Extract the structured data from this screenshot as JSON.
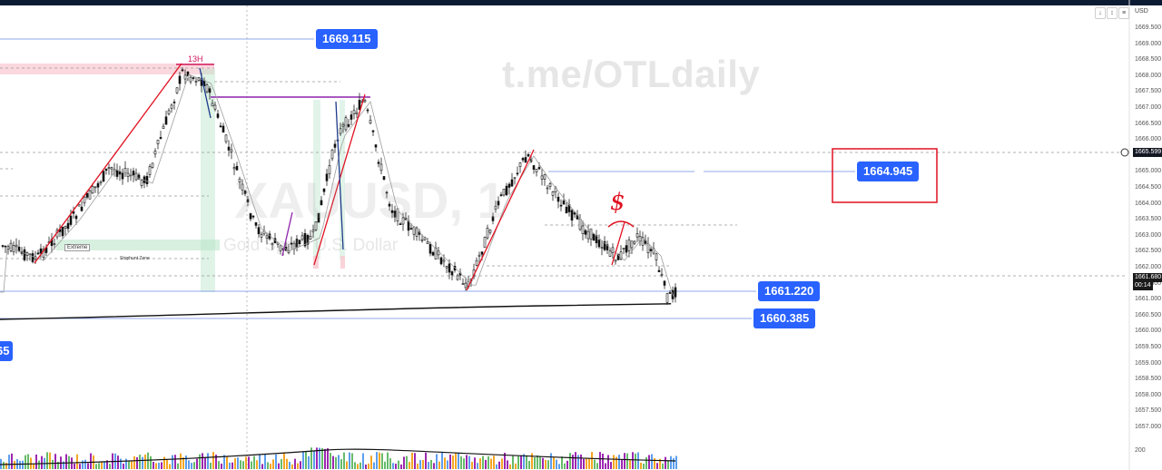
{
  "watermark": "t.me/OTLdaily",
  "ghost_symbol": "XAUUSD, 1",
  "ghost_description": "Gold Spot / U.S. Dollar",
  "currency": "USD",
  "price_scale": [
    "1669.500",
    "1669.000",
    "1668.500",
    "1668.000",
    "1667.500",
    "1667.000",
    "1666.500",
    "1666.000",
    "1665.500",
    "1665.000",
    "1664.500",
    "1664.000",
    "1663.500",
    "1663.000",
    "1662.500",
    "1662.000",
    "1661.500",
    "1661.000",
    "1660.500",
    "1660.000",
    "1659.500",
    "1659.000",
    "1658.500",
    "1658.000",
    "1657.500",
    "1657.000"
  ],
  "price_tags": {
    "top": "1669.115",
    "right_box": "1664.945",
    "mid_upper": "1661.220",
    "mid_lower": "1660.385",
    "left_cut": "65"
  },
  "current_price": "1661.680",
  "countdown": "00:14",
  "crosshair_price": "1665.599",
  "volume_label": "200",
  "annotations": {
    "h13": "13H",
    "extreme": "Extreme",
    "stophunt": "Stophunt Zone",
    "dollar": "$"
  },
  "colors": {
    "accent_blue": "#2962ff",
    "annotation_red": "#e01020",
    "zone_green": "#b7e4c7",
    "zone_pink": "#f8c8d0",
    "purple_line": "#8e24aa",
    "volume_orange": "#f5a623",
    "volume_green": "#66bb6a",
    "volume_blue": "#5c9ded",
    "volume_purple": "#9c27b0"
  }
}
